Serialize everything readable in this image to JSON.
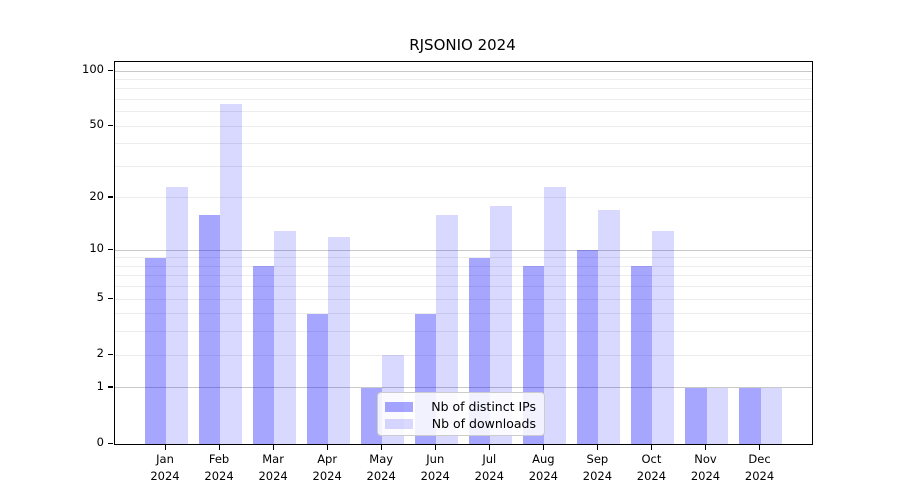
{
  "title": "RJSONIO 2024",
  "chart_data": {
    "type": "bar",
    "title": "RJSONIO 2024",
    "categories": [
      "Jan 2024",
      "Feb 2024",
      "Mar 2024",
      "Apr 2024",
      "May 2024",
      "Jun 2024",
      "Jul 2024",
      "Aug 2024",
      "Sep 2024",
      "Oct 2024",
      "Nov 2024",
      "Dec 2024"
    ],
    "series": [
      {
        "name": "Nb of distinct IPs",
        "color": "rgba(0,0,255,0.35)",
        "color_hex_on_white": "#a7a7fa",
        "values": [
          9,
          16,
          8,
          4,
          1,
          4,
          9,
          8,
          10,
          8,
          1,
          1
        ]
      },
      {
        "name": "Nb of downloads",
        "color": "rgba(0,0,255,0.15)",
        "color_hex_on_white": "#dbdbfa",
        "values": [
          23,
          66,
          13,
          12,
          2,
          16,
          18,
          23,
          17,
          13,
          1,
          1
        ]
      }
    ],
    "xlabel": "",
    "ylabel": "",
    "y_scale": "log1p",
    "y_tick_labels": [
      0,
      1,
      2,
      5,
      10,
      20,
      50,
      100
    ],
    "y_major_gridlines": [
      1,
      10,
      100
    ],
    "y_minor_gridlines": [
      2,
      3,
      4,
      5,
      6,
      7,
      8,
      9,
      20,
      30,
      40,
      50,
      60,
      70,
      80,
      90
    ],
    "ylim": [
      0,
      112
    ],
    "grid": "on",
    "legend_position": "lower center",
    "colors": {
      "major_grid": "#c8c8c8",
      "minor_grid": "#ececec",
      "axis": "#000000",
      "background": "#ffffff"
    }
  }
}
